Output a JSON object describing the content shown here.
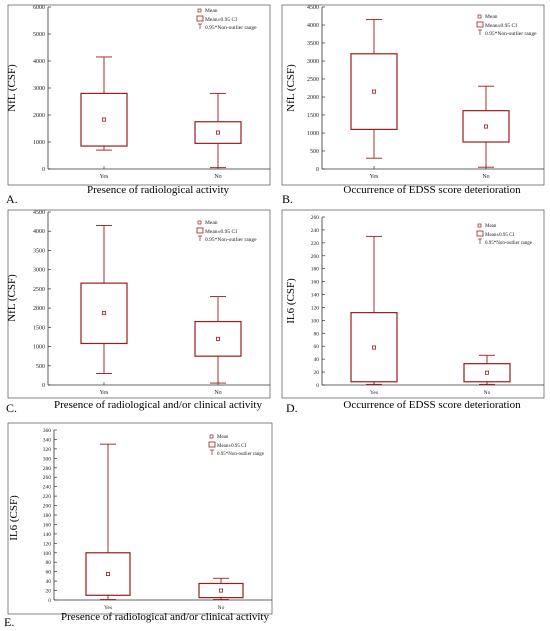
{
  "legend": {
    "mean": "Mean",
    "ci": "Mean±0.95 CI",
    "range": "0.95*Non-outlier range"
  },
  "colors": {
    "plot": "#9b1c1c",
    "axis": "#333333",
    "frame": "#666666"
  },
  "chart_data": [
    {
      "type": "box",
      "panel_label": "A.",
      "ylabel": "NfL (CSF)",
      "xlabel": "Presence of radiological activity",
      "ylim": [
        0,
        6000
      ],
      "yticks": [
        0,
        1000,
        2000,
        3000,
        4000,
        5000,
        6000
      ],
      "categories": [
        "Yes",
        "No"
      ],
      "boxes": [
        {
          "mean": 1830,
          "ci_low": 850,
          "ci_high": 2800,
          "whisker_low": 700,
          "whisker_high": 4150
        },
        {
          "mean": 1350,
          "ci_low": 950,
          "ci_high": 1750,
          "whisker_low": 50,
          "whisker_high": 2800
        }
      ]
    },
    {
      "type": "box",
      "panel_label": "B.",
      "ylabel": "NfL (CSF)",
      "xlabel": "Occurrence of EDSS score deterioration",
      "ylim": [
        0,
        4500
      ],
      "yticks": [
        0,
        500,
        1000,
        1500,
        2000,
        2500,
        3000,
        3500,
        4000,
        4500
      ],
      "categories": [
        "Yes",
        "No"
      ],
      "boxes": [
        {
          "mean": 2150,
          "ci_low": 1100,
          "ci_high": 3200,
          "whisker_low": 300,
          "whisker_high": 4150
        },
        {
          "mean": 1180,
          "ci_low": 750,
          "ci_high": 1620,
          "whisker_low": 50,
          "whisker_high": 2300
        }
      ]
    },
    {
      "type": "box",
      "panel_label": "C.",
      "ylabel": "NfL (CSF)",
      "xlabel": "Presence of radiological and/or clinical activity",
      "ylim": [
        0,
        4500
      ],
      "yticks": [
        0,
        500,
        1000,
        1500,
        2000,
        2500,
        3000,
        3500,
        4000,
        4500
      ],
      "categories": [
        "Yes",
        "No"
      ],
      "boxes": [
        {
          "mean": 1870,
          "ci_low": 1080,
          "ci_high": 2650,
          "whisker_low": 300,
          "whisker_high": 4150
        },
        {
          "mean": 1200,
          "ci_low": 750,
          "ci_high": 1650,
          "whisker_low": 50,
          "whisker_high": 2300
        }
      ]
    },
    {
      "type": "box",
      "panel_label": "D.",
      "ylabel": "IL6 (CSF)",
      "xlabel": "Occurrence of EDSS score deterioration",
      "ylim": [
        0,
        260
      ],
      "yticks": [
        0,
        20,
        40,
        60,
        80,
        100,
        120,
        140,
        160,
        180,
        200,
        220,
        240,
        260
      ],
      "categories": [
        "Yes",
        "No"
      ],
      "boxes": [
        {
          "mean": 58,
          "ci_low": 5,
          "ci_high": 112,
          "whisker_low": 1,
          "whisker_high": 230
        },
        {
          "mean": 19,
          "ci_low": 5,
          "ci_high": 33,
          "whisker_low": 1,
          "whisker_high": 46
        }
      ]
    },
    {
      "type": "box",
      "panel_label": "E.",
      "ylabel": "IL6 (CSF)",
      "xlabel": "Presence of radiological and/or clinical activity",
      "ylim": [
        0,
        360
      ],
      "yticks": [
        0,
        20,
        40,
        60,
        80,
        100,
        120,
        140,
        160,
        180,
        200,
        220,
        240,
        260,
        280,
        300,
        320,
        340,
        360
      ],
      "categories": [
        "Yes",
        "No"
      ],
      "boxes": [
        {
          "mean": 55,
          "ci_low": 10,
          "ci_high": 100,
          "whisker_low": 1,
          "whisker_high": 330
        },
        {
          "mean": 20,
          "ci_low": 5,
          "ci_high": 35,
          "whisker_low": 1,
          "whisker_high": 46
        }
      ]
    }
  ]
}
